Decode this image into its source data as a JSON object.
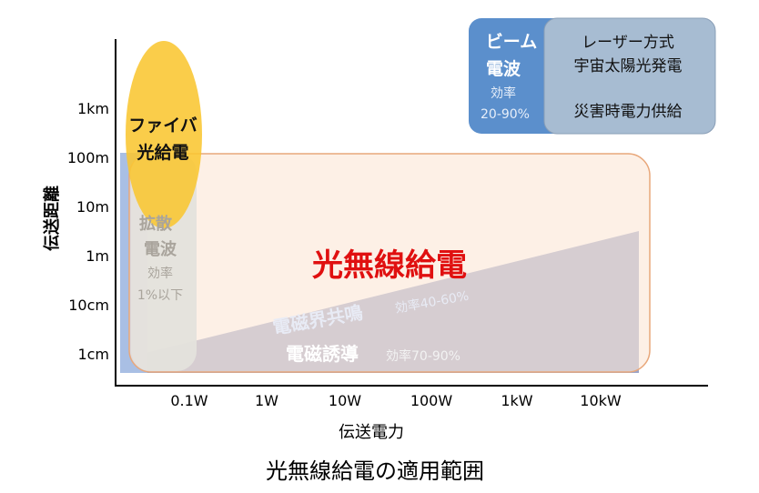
{
  "title": "光無線給電の適用範囲",
  "axes": {
    "x_label": "伝送電力",
    "y_label": "伝送距離",
    "x_ticks": [
      "0.1W",
      "1W",
      "10W",
      "100W",
      "1kW",
      "10kW"
    ],
    "y_ticks": [
      "1km",
      "100m",
      "10m",
      "1m",
      "10cm",
      "1cm"
    ]
  },
  "regions": {
    "fiber": {
      "line1": "ファイバ",
      "line2": "光給電"
    },
    "diffusion": {
      "line1": "拡散",
      "line2": "電波",
      "line3": "効率",
      "line4": "1%以下"
    },
    "optical": {
      "label": "光無線給電"
    },
    "resonance": {
      "label": "電磁界共鳴",
      "efficiency": "効率40-60%"
    },
    "induction": {
      "label": "電磁誘導",
      "efficiency": "効率70-90%"
    },
    "beam": {
      "line1": "ビーム",
      "line2": "電波",
      "line3": "効率",
      "line4": "20-90%"
    },
    "laser": {
      "line1": "レーザー方式",
      "line2": "宇宙太陽光発電",
      "line3": "災害時電力供給"
    }
  },
  "colors": {
    "fiber": "#f9c631",
    "optical_fill": "#fbe6d6",
    "optical_stroke": "#e8a77a",
    "optical_text": "#e01010",
    "resonance": "#9aa4c8",
    "induction": "#2e4d8a",
    "beam": "#5b8fcc",
    "laser": "#a7bcd2",
    "diffusion": "#e4e1dc",
    "axis": "#000000"
  }
}
